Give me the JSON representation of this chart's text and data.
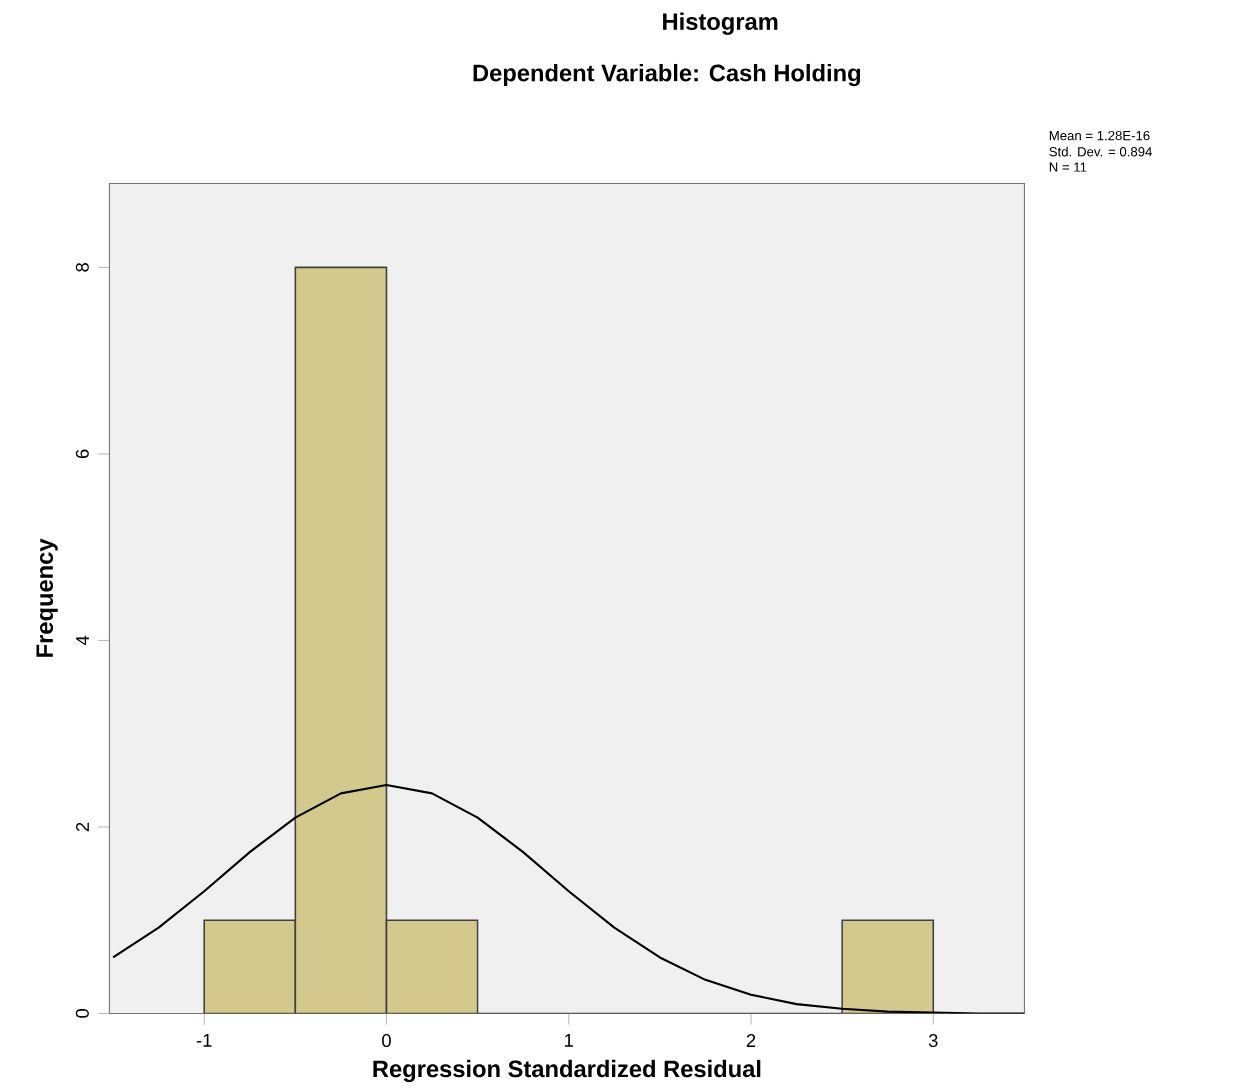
{
  "chart_data": {
    "type": "histogram",
    "title": "Histogram",
    "subtitle": "Dependent Variable: Cash Holding",
    "xlabel": "Regression Standardized Residual",
    "ylabel": "Frequency",
    "bins": [
      -1,
      -0.5,
      0,
      0.5,
      1,
      1.5,
      2,
      2.5,
      3
    ],
    "values": [
      1,
      8,
      1,
      0,
      0,
      0,
      0,
      1
    ],
    "color": "#d3c98c",
    "series": [
      {
        "type": "line",
        "color": "#000000",
        "x": [
          -1.5,
          -1.25,
          -1,
          -0.75,
          -0.5,
          -0.25,
          0,
          0.25,
          0.5,
          0.75,
          1,
          1.25,
          1.5,
          1.75,
          2,
          2.25,
          2.5,
          2.75,
          3,
          3.25,
          3.5
        ],
        "values": [
          0.6,
          0.92,
          1.31,
          1.73,
          2.1,
          2.36,
          2.45,
          2.36,
          2.1,
          1.73,
          1.31,
          0.92,
          0.6,
          0.36,
          0.2,
          0.1,
          0.05,
          0.02,
          0.01,
          0,
          0
        ]
      }
    ],
    "marker": "none",
    "xlim": [
      -1.52,
      3.5
    ],
    "ylim": [
      0,
      8.9
    ],
    "xticks": [
      -1,
      0,
      1,
      2,
      3
    ],
    "yticks": [
      0,
      2,
      4,
      6,
      8
    ],
    "grid": false,
    "annotations": [
      "Mean = 1.28E-16",
      "Std. Dev. = 0.894",
      "N = 11"
    ]
  }
}
